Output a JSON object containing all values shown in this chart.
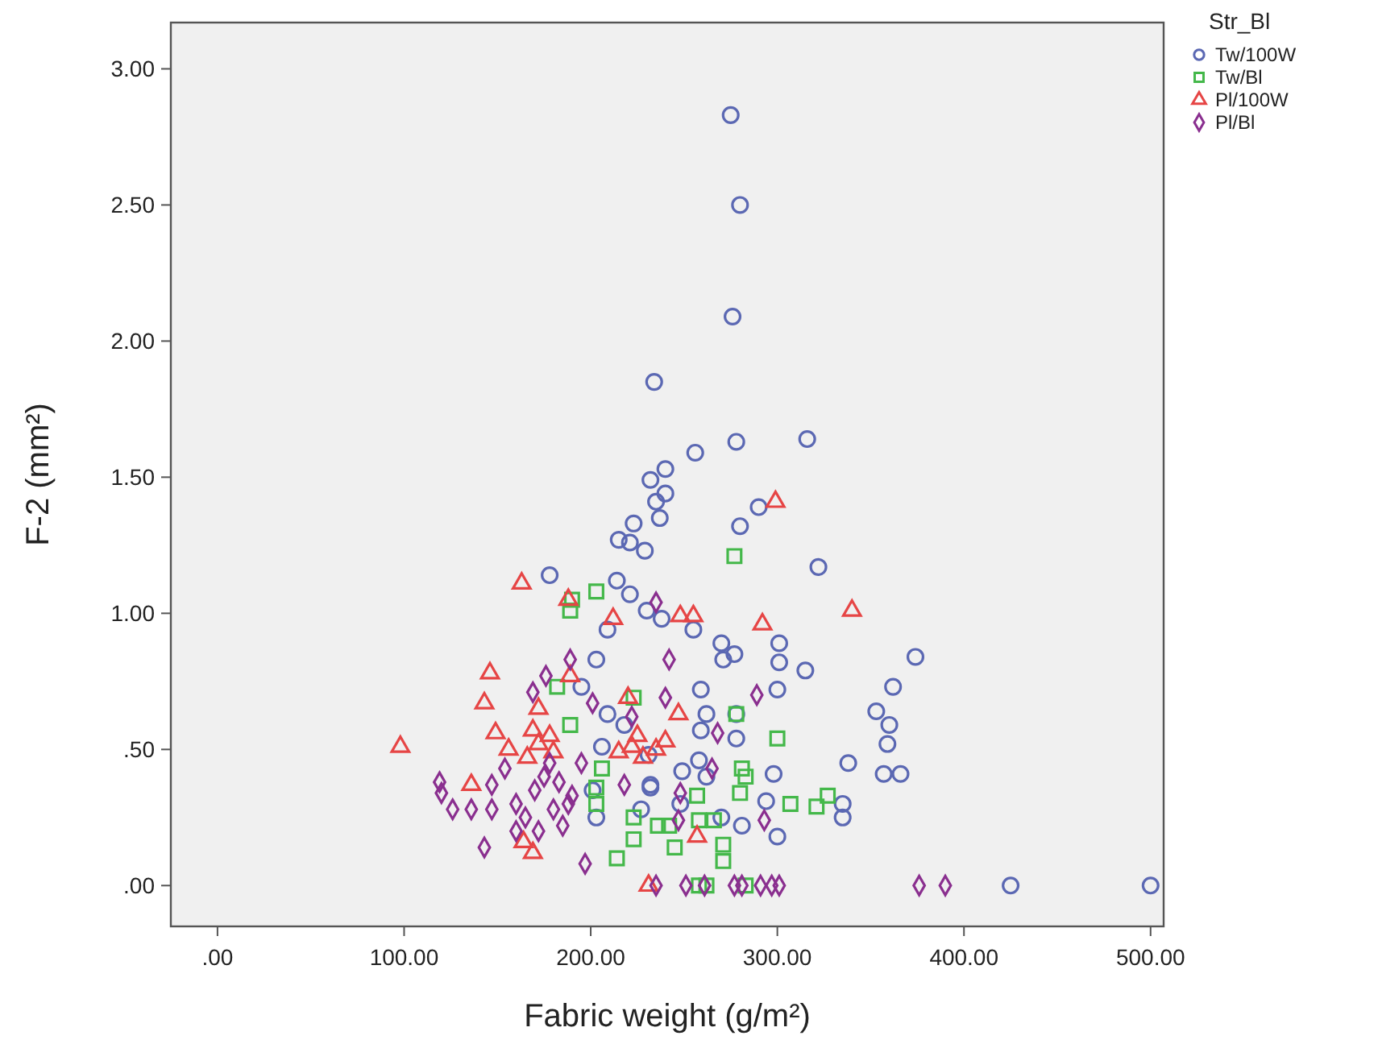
{
  "chart_data": {
    "type": "scatter",
    "xlabel": "Fabric weight (g/m²)",
    "ylabel": "F-2 (mm²)",
    "legend_title": "Str_Bl",
    "legend": "top right",
    "grid": false,
    "xlim": [
      -25,
      507
    ],
    "ylim": [
      -0.15,
      3.17
    ],
    "xticks": [
      {
        "value": 0,
        "label": ".00"
      },
      {
        "value": 100,
        "label": "100.00"
      },
      {
        "value": 200,
        "label": "200.00"
      },
      {
        "value": 300,
        "label": "300.00"
      },
      {
        "value": 400,
        "label": "400.00"
      },
      {
        "value": 500,
        "label": "500.00"
      }
    ],
    "yticks": [
      {
        "value": 0,
        "label": ".00"
      },
      {
        "value": 0.5,
        "label": ".50"
      },
      {
        "value": 1,
        "label": "1.00"
      },
      {
        "value": 1.5,
        "label": "1.50"
      },
      {
        "value": 2,
        "label": "2.00"
      },
      {
        "value": 2.5,
        "label": "2.50"
      },
      {
        "value": 3,
        "label": "3.00"
      }
    ],
    "series": [
      {
        "name": "Tw/100W",
        "color": "#5b68b3",
        "marker": "circle",
        "x": [
          275,
          280,
          276,
          234,
          256,
          278,
          316,
          240,
          232,
          240,
          235,
          237,
          290,
          280,
          223,
          215,
          221,
          229,
          322,
          178,
          214,
          221,
          230,
          209,
          203,
          195,
          209,
          206,
          218,
          203,
          201,
          232,
          227,
          238,
          255,
          270,
          277,
          271,
          301,
          301,
          315,
          374,
          362,
          353,
          360,
          359,
          338,
          357,
          366,
          300,
          259,
          262,
          278,
          259,
          278,
          298,
          258,
          262,
          249,
          231,
          294,
          335,
          335,
          281,
          300,
          270,
          248,
          232,
          425,
          500
        ],
        "values": [
          2.83,
          2.5,
          2.09,
          1.85,
          1.59,
          1.63,
          1.64,
          1.53,
          1.49,
          1.44,
          1.41,
          1.35,
          1.39,
          1.32,
          1.33,
          1.27,
          1.26,
          1.23,
          1.17,
          1.14,
          1.12,
          1.07,
          1.01,
          0.94,
          0.83,
          0.73,
          0.63,
          0.51,
          0.59,
          0.25,
          0.35,
          0.37,
          0.28,
          0.98,
          0.94,
          0.89,
          0.85,
          0.83,
          0.89,
          0.82,
          0.79,
          0.84,
          0.73,
          0.64,
          0.59,
          0.52,
          0.45,
          0.41,
          0.41,
          0.72,
          0.72,
          0.63,
          0.63,
          0.57,
          0.54,
          0.41,
          0.46,
          0.4,
          0.42,
          0.48,
          0.31,
          0.3,
          0.25,
          0.22,
          0.18,
          0.25,
          0.3,
          0.36,
          0,
          0
        ]
      },
      {
        "name": "Tw/Bl",
        "color": "#44b84a",
        "marker": "square",
        "x": [
          277,
          203,
          189,
          190,
          223,
          189,
          182,
          206,
          203,
          203,
          223,
          223,
          214,
          236,
          300,
          278,
          281,
          283,
          280,
          307,
          321,
          327,
          258,
          271,
          271,
          245,
          242,
          257,
          266,
          258,
          262,
          283
        ],
        "values": [
          1.21,
          1.08,
          1.01,
          1.05,
          0.69,
          0.59,
          0.73,
          0.43,
          0.36,
          0.3,
          0.25,
          0.17,
          0.1,
          0.22,
          0.54,
          0.63,
          0.43,
          0.4,
          0.34,
          0.3,
          0.29,
          0.33,
          0.24,
          0.15,
          0.09,
          0.14,
          0.22,
          0.33,
          0.24,
          0,
          0,
          0
        ]
      },
      {
        "name": "Pl/100W",
        "color": "#e64545",
        "marker": "triangle",
        "x": [
          299,
          340,
          248,
          255,
          292,
          247,
          257,
          231,
          163,
          188,
          146,
          143,
          149,
          98,
          136,
          156,
          172,
          169,
          164,
          169,
          166,
          172,
          178,
          180,
          215,
          222,
          228,
          235,
          212,
          189,
          220,
          225,
          240
        ],
        "values": [
          1.41,
          1.01,
          0.99,
          0.99,
          0.96,
          0.63,
          0.18,
          0,
          1.11,
          1.05,
          0.78,
          0.67,
          0.56,
          0.51,
          0.37,
          0.5,
          0.65,
          0.57,
          0.16,
          0.12,
          0.47,
          0.52,
          0.55,
          0.49,
          0.49,
          0.51,
          0.47,
          0.5,
          0.98,
          0.77,
          0.69,
          0.55,
          0.53
        ]
      },
      {
        "name": "Pl/Bl",
        "color": "#8a2f8f",
        "marker": "diamond",
        "x": [
          235,
          242,
          240,
          289,
          268,
          265,
          248,
          247,
          293,
          235,
          251,
          261,
          277,
          281,
          291,
          297,
          301,
          376,
          390,
          119,
          120,
          126,
          136,
          147,
          143,
          197,
          189,
          176,
          169,
          201,
          147,
          154,
          218,
          160,
          165,
          170,
          175,
          180,
          185,
          190,
          195,
          160,
          172,
          183,
          178,
          188,
          222
        ],
        "values": [
          1.04,
          0.83,
          0.69,
          0.7,
          0.56,
          0.43,
          0.34,
          0.24,
          0.24,
          0,
          0,
          0,
          0,
          0,
          0,
          0,
          0,
          0,
          0,
          0.38,
          0.34,
          0.28,
          0.28,
          0.28,
          0.14,
          0.08,
          0.83,
          0.77,
          0.71,
          0.67,
          0.37,
          0.43,
          0.37,
          0.3,
          0.25,
          0.35,
          0.4,
          0.28,
          0.22,
          0.33,
          0.45,
          0.2,
          0.2,
          0.38,
          0.45,
          0.3,
          0.62
        ]
      }
    ]
  }
}
